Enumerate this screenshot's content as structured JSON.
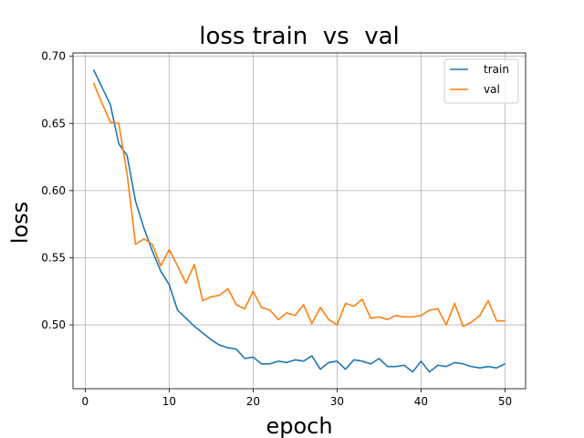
{
  "chart_data": {
    "type": "line",
    "title": "loss train  vs  val",
    "xlabel": "epoch",
    "ylabel": "loss",
    "xlim": [
      -1.45,
      52.45
    ],
    "ylim": [
      0.4525,
      0.7025
    ],
    "xticks": [
      0,
      10,
      20,
      30,
      40,
      50
    ],
    "yticks": [
      0.5,
      0.55,
      0.6,
      0.65,
      0.7
    ],
    "ytick_labels": [
      "0.50",
      "0.55",
      "0.60",
      "0.65",
      "0.70"
    ],
    "grid": true,
    "legend_position": "upper-right",
    "series": [
      {
        "name": "train",
        "color": "#1f77b4",
        "x": [
          1,
          2,
          3,
          4,
          5,
          6,
          7,
          8,
          9,
          10,
          11,
          12,
          13,
          14,
          15,
          16,
          17,
          18,
          19,
          20,
          21,
          22,
          23,
          24,
          25,
          26,
          27,
          28,
          29,
          30,
          31,
          32,
          33,
          34,
          35,
          36,
          37,
          38,
          39,
          40,
          41,
          42,
          43,
          44,
          45,
          46,
          47,
          48,
          49,
          50
        ],
        "y": [
          0.69,
          0.677,
          0.664,
          0.635,
          0.626,
          0.592,
          0.572,
          0.555,
          0.54,
          0.53,
          0.511,
          0.505,
          0.499,
          0.494,
          0.489,
          0.485,
          0.483,
          0.482,
          0.475,
          0.476,
          0.471,
          0.471,
          0.473,
          0.472,
          0.474,
          0.473,
          0.477,
          0.467,
          0.472,
          0.473,
          0.467,
          0.474,
          0.473,
          0.471,
          0.475,
          0.469,
          0.469,
          0.47,
          0.465,
          0.473,
          0.465,
          0.47,
          0.469,
          0.472,
          0.471,
          0.469,
          0.468,
          0.469,
          0.468,
          0.471
        ]
      },
      {
        "name": "val",
        "color": "#ff7f0e",
        "x": [
          1,
          2,
          3,
          4,
          5,
          6,
          7,
          8,
          9,
          10,
          11,
          12,
          13,
          14,
          15,
          16,
          17,
          18,
          19,
          20,
          21,
          22,
          23,
          24,
          25,
          26,
          27,
          28,
          29,
          30,
          31,
          32,
          33,
          34,
          35,
          36,
          37,
          38,
          39,
          40,
          41,
          42,
          43,
          44,
          45,
          46,
          47,
          48,
          49,
          50
        ],
        "y": [
          0.68,
          0.665,
          0.651,
          0.65,
          0.612,
          0.56,
          0.564,
          0.56,
          0.544,
          0.556,
          0.544,
          0.531,
          0.545,
          0.518,
          0.521,
          0.522,
          0.527,
          0.515,
          0.512,
          0.525,
          0.513,
          0.511,
          0.504,
          0.509,
          0.507,
          0.515,
          0.501,
          0.513,
          0.504,
          0.5,
          0.516,
          0.514,
          0.519,
          0.505,
          0.506,
          0.504,
          0.507,
          0.506,
          0.506,
          0.507,
          0.511,
          0.512,
          0.5,
          0.516,
          0.499,
          0.502,
          0.507,
          0.518,
          0.503,
          0.503
        ]
      }
    ]
  }
}
